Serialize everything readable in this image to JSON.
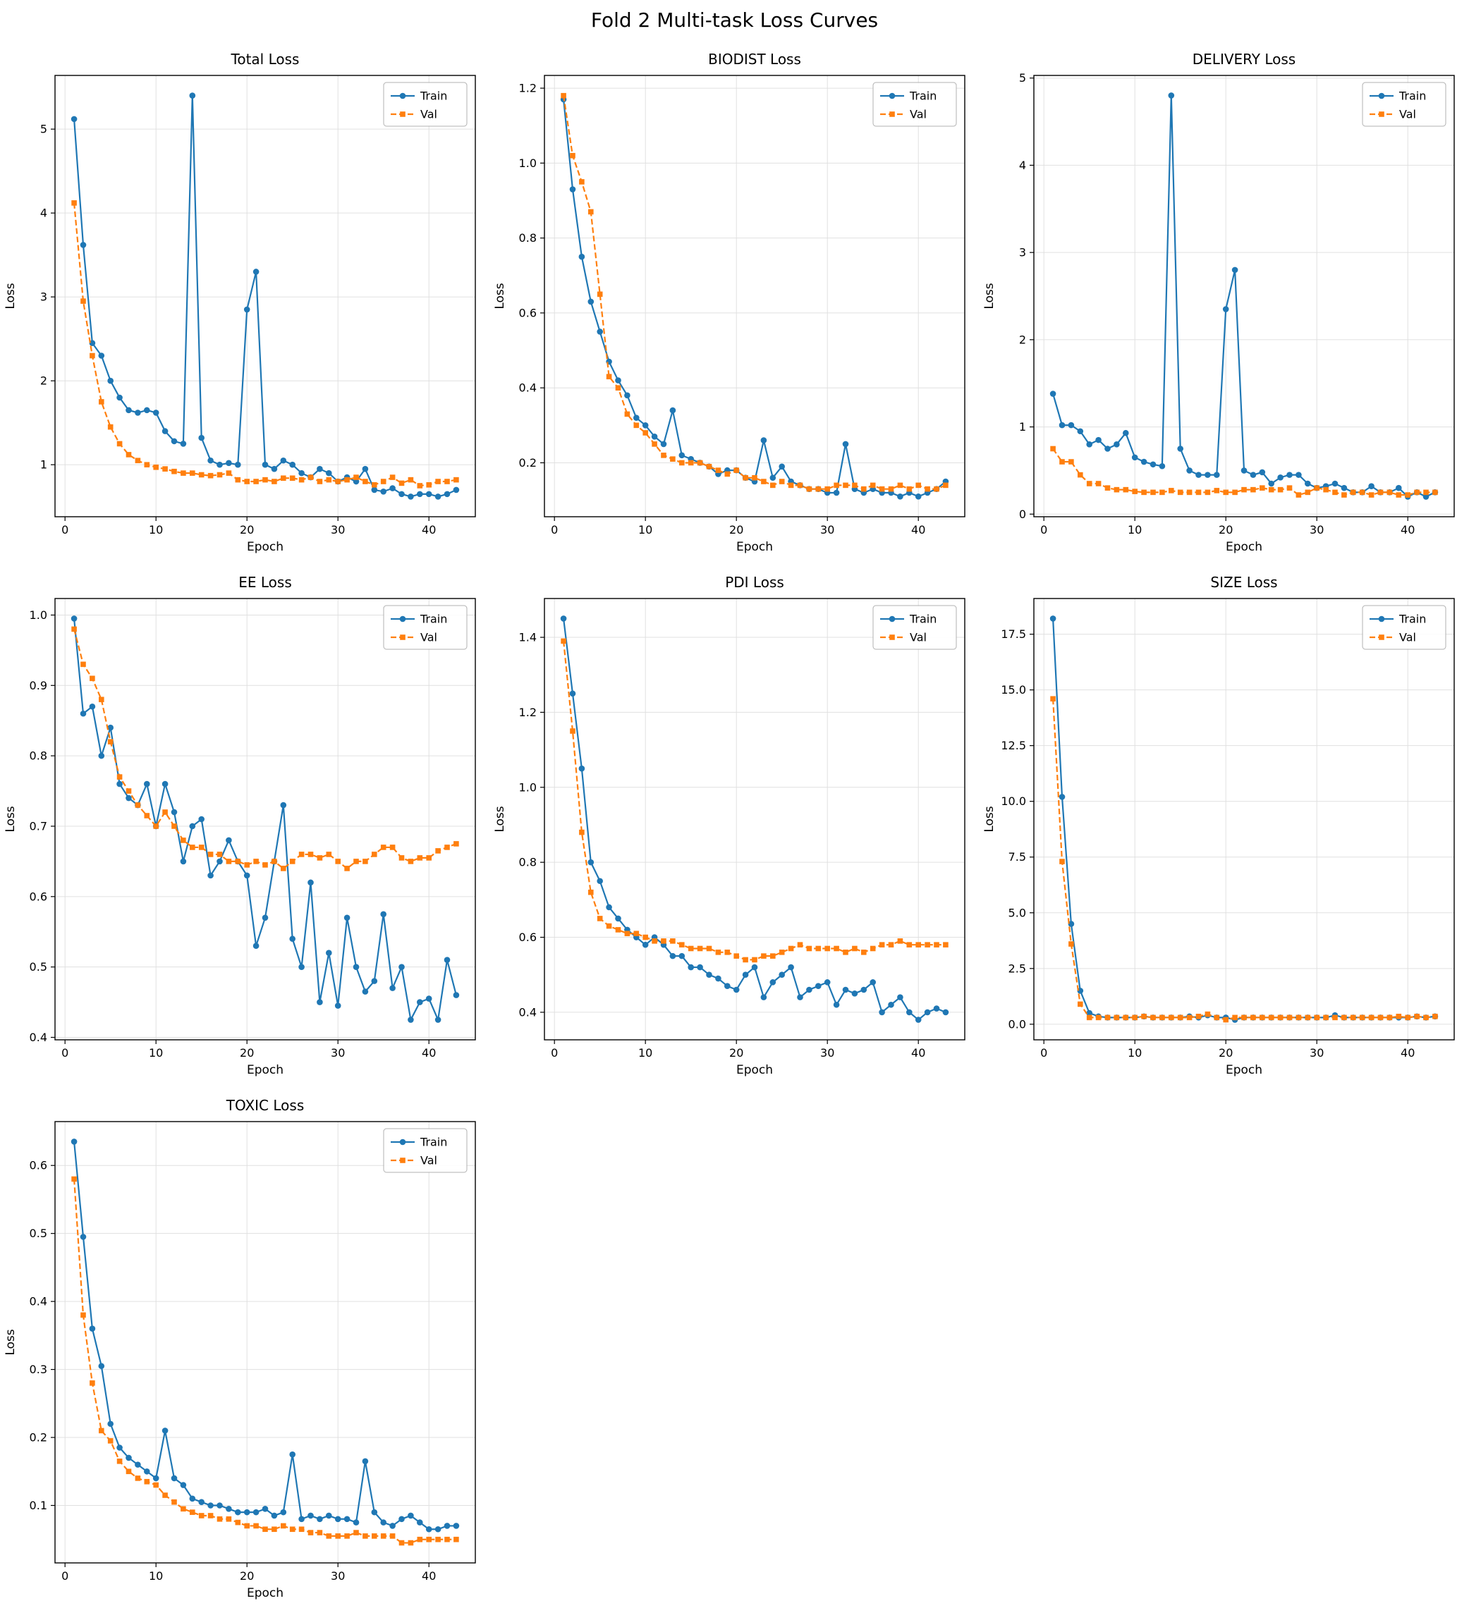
{
  "title": "Fold 2 Multi-task Loss Curves",
  "legend": {
    "train_label": "Train",
    "val_label": "Val"
  },
  "colors": {
    "train": "#1f77b4",
    "val": "#ff7f0e",
    "grid": "#e0e0e0",
    "spine": "#000000"
  },
  "chart_data": [
    {
      "type": "line",
      "title": "Total Loss",
      "xlabel": "Epoch",
      "ylabel": "Loss",
      "x_start": 1,
      "xlim": [
        -1.1,
        45.1
      ],
      "ylim": [
        0.38,
        5.64
      ],
      "xticks": [
        "0",
        "10",
        "20",
        "30",
        "40"
      ],
      "yticks": [
        "1",
        "2",
        "3",
        "4",
        "5"
      ],
      "grid": true,
      "legend_position": "top-right",
      "series": [
        {
          "name": "Train",
          "values": [
            5.12,
            3.62,
            2.45,
            2.3,
            2.0,
            1.8,
            1.65,
            1.62,
            1.65,
            1.62,
            1.4,
            1.28,
            1.25,
            5.4,
            1.32,
            1.05,
            1.0,
            1.02,
            1.0,
            2.85,
            3.3,
            1.0,
            0.95,
            1.05,
            1.0,
            0.9,
            0.85,
            0.95,
            0.9,
            0.8,
            0.85,
            0.8,
            0.95,
            0.7,
            0.68,
            0.72,
            0.65,
            0.62,
            0.65,
            0.65,
            0.62,
            0.65,
            0.7
          ]
        },
        {
          "name": "Val",
          "values": [
            4.12,
            2.95,
            2.3,
            1.75,
            1.45,
            1.25,
            1.12,
            1.05,
            1.0,
            0.97,
            0.95,
            0.92,
            0.9,
            0.9,
            0.88,
            0.87,
            0.88,
            0.9,
            0.82,
            0.8,
            0.8,
            0.82,
            0.8,
            0.84,
            0.84,
            0.82,
            0.85,
            0.8,
            0.82,
            0.8,
            0.82,
            0.85,
            0.8,
            0.76,
            0.8,
            0.85,
            0.78,
            0.82,
            0.75,
            0.76,
            0.8,
            0.8,
            0.82
          ]
        }
      ]
    },
    {
      "type": "line",
      "title": "BIODIST Loss",
      "xlabel": "Epoch",
      "ylabel": "Loss",
      "x_start": 1,
      "xlim": [
        -1.1,
        45.1
      ],
      "ylim": [
        0.056,
        1.234
      ],
      "xticks": [
        "0",
        "10",
        "20",
        "30",
        "40"
      ],
      "yticks": [
        "0.2",
        "0.4",
        "0.6",
        "0.8",
        "1.0",
        "1.2"
      ],
      "grid": true,
      "legend_position": "top-right",
      "series": [
        {
          "name": "Train",
          "values": [
            1.17,
            0.93,
            0.75,
            0.63,
            0.55,
            0.47,
            0.42,
            0.38,
            0.32,
            0.3,
            0.27,
            0.25,
            0.34,
            0.22,
            0.21,
            0.2,
            0.19,
            0.17,
            0.18,
            0.18,
            0.16,
            0.15,
            0.26,
            0.16,
            0.19,
            0.15,
            0.14,
            0.13,
            0.13,
            0.12,
            0.12,
            0.25,
            0.13,
            0.12,
            0.13,
            0.12,
            0.12,
            0.11,
            0.12,
            0.11,
            0.12,
            0.13,
            0.15
          ]
        },
        {
          "name": "Val",
          "values": [
            1.18,
            1.02,
            0.95,
            0.87,
            0.65,
            0.43,
            0.4,
            0.33,
            0.3,
            0.28,
            0.25,
            0.22,
            0.21,
            0.2,
            0.2,
            0.2,
            0.19,
            0.18,
            0.17,
            0.18,
            0.16,
            0.16,
            0.15,
            0.14,
            0.15,
            0.14,
            0.14,
            0.13,
            0.13,
            0.13,
            0.14,
            0.14,
            0.14,
            0.13,
            0.14,
            0.13,
            0.13,
            0.14,
            0.13,
            0.14,
            0.13,
            0.13,
            0.14
          ]
        }
      ]
    },
    {
      "type": "line",
      "title": "DELIVERY Loss",
      "xlabel": "Epoch",
      "ylabel": "Loss",
      "x_start": 1,
      "xlim": [
        -1.1,
        45.1
      ],
      "ylim": [
        -0.03,
        5.03
      ],
      "xticks": [
        "0",
        "10",
        "20",
        "30",
        "40"
      ],
      "yticks": [
        "0",
        "1",
        "2",
        "3",
        "4",
        "5"
      ],
      "grid": true,
      "legend_position": "top-right",
      "series": [
        {
          "name": "Train",
          "values": [
            1.38,
            1.02,
            1.02,
            0.95,
            0.8,
            0.85,
            0.75,
            0.8,
            0.93,
            0.65,
            0.6,
            0.57,
            0.55,
            4.8,
            0.75,
            0.5,
            0.45,
            0.45,
            0.45,
            2.35,
            2.8,
            0.5,
            0.45,
            0.48,
            0.35,
            0.42,
            0.45,
            0.45,
            0.35,
            0.3,
            0.32,
            0.35,
            0.3,
            0.25,
            0.25,
            0.32,
            0.25,
            0.25,
            0.3,
            0.2,
            0.25,
            0.2,
            0.25
          ]
        },
        {
          "name": "Val",
          "values": [
            0.75,
            0.6,
            0.6,
            0.45,
            0.35,
            0.35,
            0.3,
            0.28,
            0.28,
            0.26,
            0.25,
            0.25,
            0.25,
            0.27,
            0.25,
            0.25,
            0.25,
            0.25,
            0.27,
            0.25,
            0.25,
            0.28,
            0.28,
            0.3,
            0.28,
            0.28,
            0.3,
            0.22,
            0.25,
            0.3,
            0.28,
            0.25,
            0.22,
            0.25,
            0.25,
            0.22,
            0.25,
            0.25,
            0.22,
            0.22,
            0.25,
            0.25,
            0.25
          ]
        }
      ]
    },
    {
      "type": "line",
      "title": "EE Loss",
      "xlabel": "Epoch",
      "ylabel": "Loss",
      "x_start": 1,
      "xlim": [
        -1.1,
        45.1
      ],
      "ylim": [
        0.3965,
        1.0235
      ],
      "xticks": [
        "0",
        "10",
        "20",
        "30",
        "40"
      ],
      "yticks": [
        "0.4",
        "0.5",
        "0.6",
        "0.7",
        "0.8",
        "0.9",
        "1.0"
      ],
      "grid": true,
      "legend_position": "top-right",
      "series": [
        {
          "name": "Train",
          "values": [
            0.995,
            0.86,
            0.87,
            0.8,
            0.84,
            0.76,
            0.74,
            0.73,
            0.76,
            0.7,
            0.76,
            0.72,
            0.65,
            0.7,
            0.71,
            0.63,
            0.65,
            0.68,
            0.65,
            0.63,
            0.53,
            0.57,
            0.65,
            0.73,
            0.54,
            0.5,
            0.62,
            0.45,
            0.52,
            0.445,
            0.57,
            0.5,
            0.465,
            0.48,
            0.575,
            0.47,
            0.5,
            0.425,
            0.45,
            0.455,
            0.425,
            0.51,
            0.46
          ]
        },
        {
          "name": "Val",
          "values": [
            0.98,
            0.93,
            0.91,
            0.88,
            0.82,
            0.77,
            0.75,
            0.73,
            0.715,
            0.7,
            0.72,
            0.7,
            0.68,
            0.67,
            0.67,
            0.66,
            0.66,
            0.65,
            0.65,
            0.645,
            0.65,
            0.645,
            0.65,
            0.64,
            0.65,
            0.66,
            0.66,
            0.655,
            0.66,
            0.65,
            0.64,
            0.65,
            0.65,
            0.66,
            0.67,
            0.67,
            0.655,
            0.65,
            0.655,
            0.655,
            0.665,
            0.67,
            0.675
          ]
        }
      ]
    },
    {
      "type": "line",
      "title": "PDI Loss",
      "xlabel": "Epoch",
      "ylabel": "Loss",
      "x_start": 1,
      "xlim": [
        -1.1,
        45.1
      ],
      "ylim": [
        0.3265,
        1.5035
      ],
      "xticks": [
        "0",
        "10",
        "20",
        "30",
        "40"
      ],
      "yticks": [
        "0.4",
        "0.6",
        "0.8",
        "1.0",
        "1.2",
        "1.4"
      ],
      "grid": true,
      "legend_position": "top-right",
      "series": [
        {
          "name": "Train",
          "values": [
            1.45,
            1.25,
            1.05,
            0.8,
            0.75,
            0.68,
            0.65,
            0.62,
            0.6,
            0.58,
            0.6,
            0.58,
            0.55,
            0.55,
            0.52,
            0.52,
            0.5,
            0.49,
            0.47,
            0.46,
            0.5,
            0.52,
            0.44,
            0.48,
            0.5,
            0.52,
            0.44,
            0.46,
            0.47,
            0.48,
            0.42,
            0.46,
            0.45,
            0.46,
            0.48,
            0.4,
            0.42,
            0.44,
            0.4,
            0.38,
            0.4,
            0.41,
            0.4
          ]
        },
        {
          "name": "Val",
          "values": [
            1.39,
            1.15,
            0.88,
            0.72,
            0.65,
            0.63,
            0.62,
            0.61,
            0.61,
            0.6,
            0.59,
            0.59,
            0.59,
            0.58,
            0.57,
            0.57,
            0.57,
            0.56,
            0.56,
            0.55,
            0.54,
            0.54,
            0.55,
            0.55,
            0.56,
            0.57,
            0.58,
            0.57,
            0.57,
            0.57,
            0.57,
            0.56,
            0.57,
            0.56,
            0.57,
            0.58,
            0.58,
            0.59,
            0.58,
            0.58,
            0.58,
            0.58,
            0.58
          ]
        }
      ]
    },
    {
      "type": "line",
      "title": "SIZE Loss",
      "xlabel": "Epoch",
      "ylabel": "Loss",
      "x_start": 1,
      "xlim": [
        -1.1,
        45.1
      ],
      "ylim": [
        -0.7,
        19.1
      ],
      "xticks": [
        "0",
        "10",
        "20",
        "30",
        "40"
      ],
      "yticks": [
        "0.0",
        "2.5",
        "5.0",
        "7.5",
        "10.0",
        "12.5",
        "15.0",
        "17.5"
      ],
      "grid": true,
      "legend_position": "top-right",
      "series": [
        {
          "name": "Train",
          "values": [
            18.2,
            10.2,
            4.5,
            1.5,
            0.5,
            0.35,
            0.3,
            0.3,
            0.3,
            0.3,
            0.35,
            0.3,
            0.3,
            0.3,
            0.3,
            0.35,
            0.3,
            0.4,
            0.3,
            0.3,
            0.2,
            0.3,
            0.3,
            0.3,
            0.3,
            0.3,
            0.3,
            0.3,
            0.3,
            0.3,
            0.3,
            0.4,
            0.3,
            0.3,
            0.3,
            0.3,
            0.3,
            0.3,
            0.3,
            0.3,
            0.35,
            0.3,
            0.35
          ]
        },
        {
          "name": "Val",
          "values": [
            14.6,
            7.3,
            3.6,
            0.9,
            0.3,
            0.3,
            0.3,
            0.3,
            0.3,
            0.3,
            0.35,
            0.3,
            0.3,
            0.3,
            0.3,
            0.3,
            0.35,
            0.45,
            0.3,
            0.2,
            0.3,
            0.3,
            0.3,
            0.3,
            0.3,
            0.3,
            0.3,
            0.3,
            0.3,
            0.3,
            0.3,
            0.3,
            0.3,
            0.3,
            0.3,
            0.3,
            0.3,
            0.3,
            0.35,
            0.3,
            0.35,
            0.3,
            0.35
          ]
        }
      ]
    },
    {
      "type": "line",
      "title": "TOXIC Loss",
      "xlabel": "Epoch",
      "ylabel": "Loss",
      "x_start": 1,
      "xlim": [
        -1.1,
        45.1
      ],
      "ylim": [
        0.0155,
        0.6645
      ],
      "xticks": [
        "0",
        "10",
        "20",
        "30",
        "40"
      ],
      "yticks": [
        "0.1",
        "0.2",
        "0.3",
        "0.4",
        "0.5",
        "0.6"
      ],
      "grid": true,
      "legend_position": "top-right",
      "series": [
        {
          "name": "Train",
          "values": [
            0.635,
            0.495,
            0.36,
            0.305,
            0.22,
            0.185,
            0.17,
            0.16,
            0.15,
            0.14,
            0.21,
            0.14,
            0.13,
            0.11,
            0.105,
            0.1,
            0.1,
            0.095,
            0.09,
            0.09,
            0.09,
            0.095,
            0.085,
            0.09,
            0.175,
            0.08,
            0.085,
            0.08,
            0.085,
            0.08,
            0.08,
            0.075,
            0.165,
            0.09,
            0.075,
            0.07,
            0.08,
            0.085,
            0.075,
            0.065,
            0.065,
            0.07,
            0.07
          ]
        },
        {
          "name": "Val",
          "values": [
            0.58,
            0.38,
            0.28,
            0.21,
            0.195,
            0.165,
            0.15,
            0.14,
            0.135,
            0.13,
            0.115,
            0.105,
            0.095,
            0.09,
            0.085,
            0.085,
            0.08,
            0.08,
            0.075,
            0.07,
            0.07,
            0.065,
            0.065,
            0.07,
            0.065,
            0.065,
            0.06,
            0.06,
            0.055,
            0.055,
            0.055,
            0.06,
            0.055,
            0.055,
            0.055,
            0.055,
            0.045,
            0.045,
            0.05,
            0.05,
            0.05,
            0.05,
            0.05
          ]
        }
      ]
    }
  ]
}
